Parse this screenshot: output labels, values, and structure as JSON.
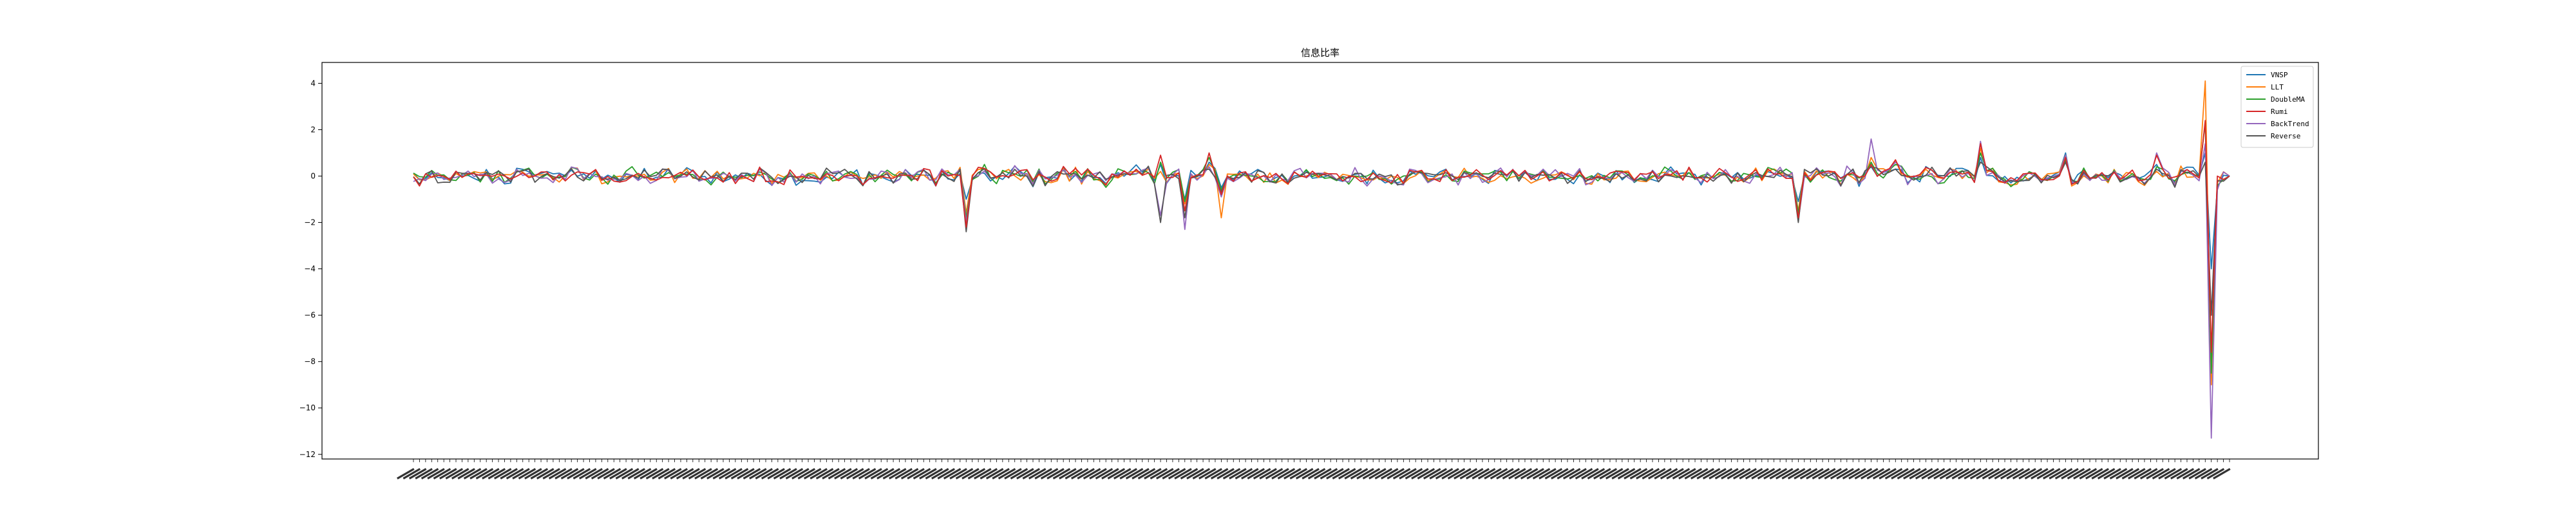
{
  "chart_data": {
    "type": "line",
    "title": "信息比率",
    "xlabel": "",
    "ylabel": "",
    "ylim": [
      -12.2,
      4.9
    ],
    "yticks": [
      4,
      2,
      0,
      -2,
      -4,
      -6,
      -8,
      -10,
      -12
    ],
    "ytick_labels": [
      "4",
      "2",
      "0",
      "−2",
      "−4",
      "−6",
      "−8",
      "−10",
      "−12"
    ],
    "x_count": 300,
    "x_tick_labels_note": "300 rotated tick labels (unreadable at this resolution)",
    "grid": false,
    "legend_position": "top-right",
    "series": [
      {
        "name": "VNSP",
        "color": "#1f77b4"
      },
      {
        "name": "LLT",
        "color": "#ff7f0e"
      },
      {
        "name": "DoubleMA",
        "color": "#2ca02c"
      },
      {
        "name": "Rumi",
        "color": "#d62728"
      },
      {
        "name": "BackTrend",
        "color": "#9467bd"
      },
      {
        "name": "Reverse",
        "color": "#555555"
      }
    ],
    "events": [
      {
        "x": 91,
        "values": [
          -1.0,
          -1.6,
          -1.8,
          -2.2,
          -2.0,
          -2.4
        ]
      },
      {
        "x": 123,
        "values": [
          0.5,
          0.2,
          0.6,
          0.9,
          -1.7,
          -2.0
        ]
      },
      {
        "x": 127,
        "values": [
          -1.0,
          -1.2,
          -1.1,
          -1.5,
          -2.3,
          -1.8
        ]
      },
      {
        "x": 131,
        "values": [
          0.6,
          0.5,
          0.8,
          1.0,
          0.4,
          0.3
        ]
      },
      {
        "x": 133,
        "values": [
          -0.5,
          -1.8,
          -0.6,
          -0.8,
          -0.9,
          -0.7
        ]
      },
      {
        "x": 228,
        "values": [
          -1.1,
          -1.5,
          -1.6,
          -1.8,
          -1.9,
          -2.0
        ]
      },
      {
        "x": 240,
        "values": [
          0.4,
          0.8,
          0.6,
          0.5,
          1.6,
          0.4
        ]
      },
      {
        "x": 244,
        "values": [
          0.3,
          0.7,
          0.5,
          0.7,
          0.6,
          0.3
        ]
      },
      {
        "x": 258,
        "values": [
          0.8,
          1.2,
          1.0,
          1.4,
          1.5,
          0.6
        ]
      },
      {
        "x": 272,
        "values": [
          1.0,
          0.9,
          0.7,
          0.8,
          0.9,
          0.6
        ]
      },
      {
        "x": 287,
        "values": [
          0.5,
          0.2,
          0.4,
          0.9,
          1.0,
          0.3
        ]
      },
      {
        "x": 295,
        "values": [
          1.0,
          4.1,
          2.3,
          2.4,
          1.4,
          0.6
        ]
      },
      {
        "x": 296,
        "values": [
          -4.0,
          -9.0,
          -8.5,
          -7.6,
          -11.3,
          -6.0
        ]
      },
      {
        "x": 297,
        "values": [
          -0.5,
          -0.3,
          -0.4,
          0.0,
          -0.6,
          -0.2
        ]
      }
    ]
  }
}
